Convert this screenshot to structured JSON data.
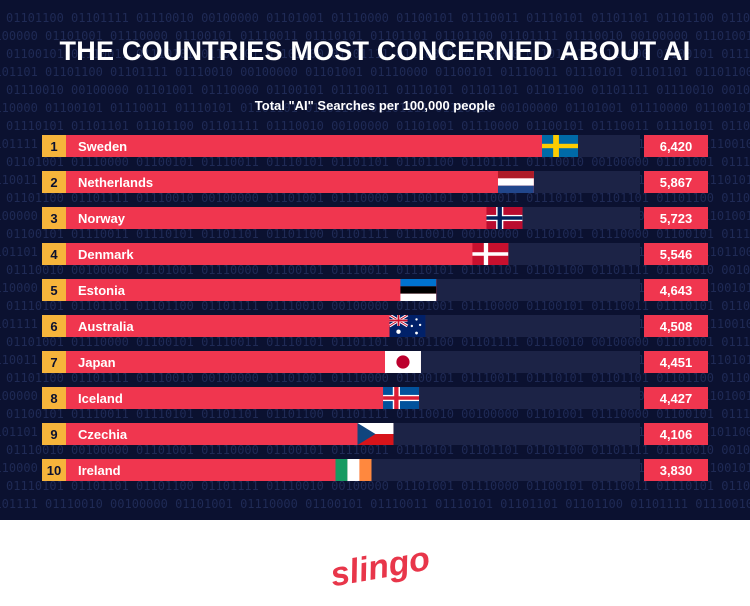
{
  "title": "THE COUNTRIES MOST CONCERNED ABOUT AI",
  "subtitle": "Total \"AI\" Searches per 100,000 people",
  "brand": {
    "name": "SLINGO",
    "color": "#e8364a"
  },
  "colors": {
    "background": "#0b1130",
    "bar": "#f0364f",
    "track": "#1c2346",
    "rank_box": "#f6b43b",
    "value_box": "#f0364f"
  },
  "chart_data": {
    "type": "bar",
    "orientation": "horizontal",
    "title": "THE COUNTRIES MOST CONCERNED ABOUT AI",
    "subtitle": "Total \"AI\" Searches per 100,000 people",
    "ranks": [
      "1",
      "2",
      "3",
      "4",
      "5",
      "6",
      "7",
      "8",
      "9",
      "10"
    ],
    "categories": [
      "Sweden",
      "Netherlands",
      "Norway",
      "Denmark",
      "Estonia",
      "Australia",
      "Japan",
      "Iceland",
      "Czechia",
      "Ireland"
    ],
    "values": [
      6420,
      5867,
      5723,
      5546,
      4643,
      4508,
      4451,
      4427,
      4106,
      3830
    ],
    "value_labels": [
      "6,420",
      "5,867",
      "5,723",
      "5,546",
      "4,643",
      "4,508",
      "4,451",
      "4,427",
      "4,106",
      "3,830"
    ],
    "flags": [
      "sweden-flag",
      "netherlands-flag",
      "norway-flag",
      "denmark-flag",
      "estonia-flag",
      "australia-flag",
      "japan-flag",
      "iceland-flag",
      "czechia-flag",
      "ireland-flag"
    ],
    "xlim": [
      0,
      6420
    ],
    "grid": false,
    "legend": "none"
  }
}
